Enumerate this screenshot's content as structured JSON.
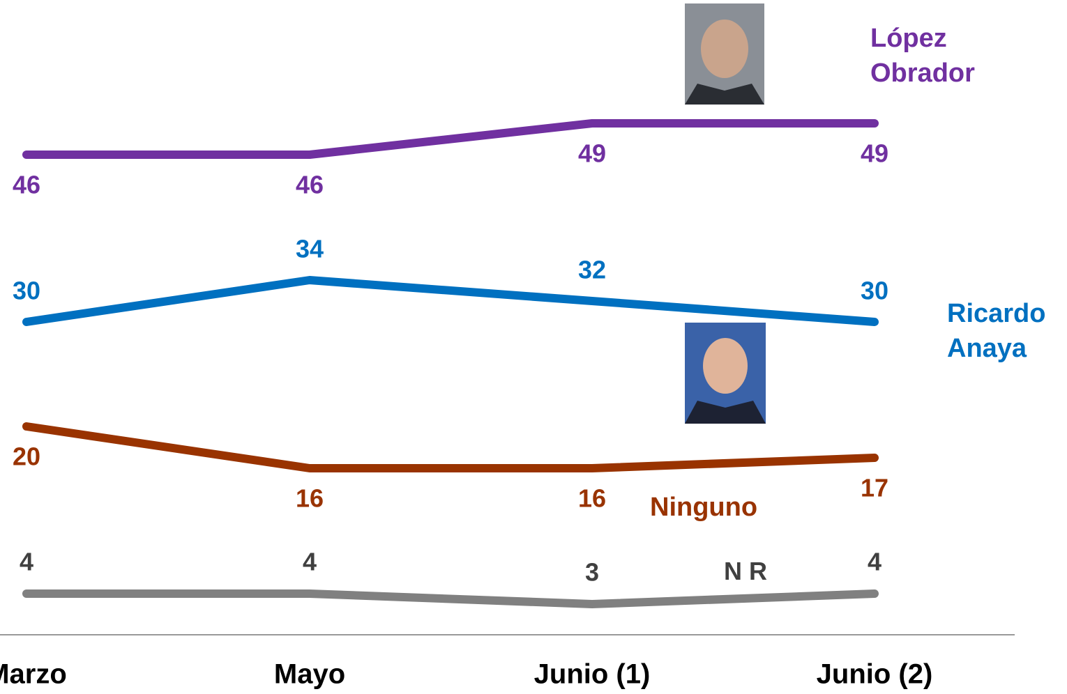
{
  "chart_data": {
    "type": "line",
    "categories": [
      "Marzo",
      "Mayo",
      "Junio (1)",
      "Junio (2)"
    ],
    "series": [
      {
        "name": "López Obrador",
        "color": "#7030a0",
        "values": [
          46,
          46,
          49,
          49
        ]
      },
      {
        "name": "Ricardo Anaya",
        "color": "#0070c0",
        "values": [
          30,
          34,
          32,
          30
        ]
      },
      {
        "name": "Ninguno",
        "color": "#993300",
        "values": [
          20,
          16,
          16,
          17
        ]
      },
      {
        "name": "N R",
        "color": "#808080",
        "values": [
          4,
          4,
          3,
          4
        ]
      }
    ],
    "ylim": [
      0,
      60
    ]
  }
}
